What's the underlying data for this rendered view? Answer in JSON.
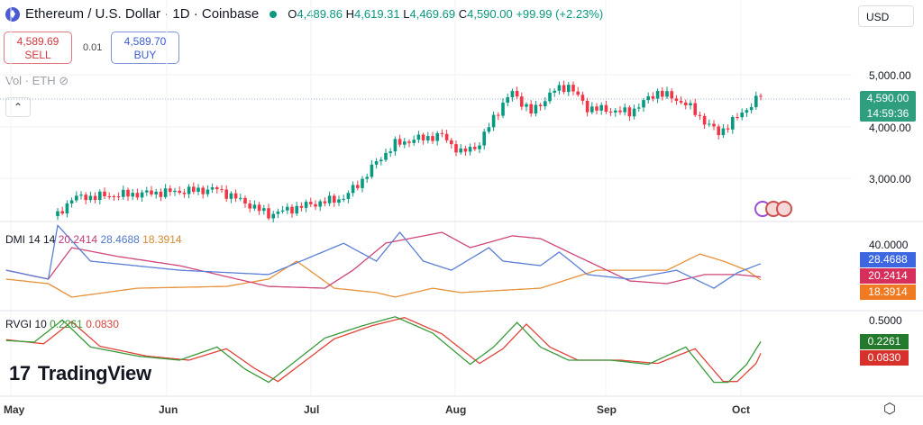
{
  "header": {
    "title": "Ethereum / U.S. Dollar · 1D · Coinbase",
    "o_label": "O",
    "open": "4,489.86",
    "h_label": "H",
    "high": "4,619.31",
    "l_label": "L",
    "low": "4,469.69",
    "c_label": "C",
    "close": "4,590.00",
    "change": "+99.99 (+2.23%)"
  },
  "trade": {
    "sell_price": "4,589.69",
    "sell_label": "SELL",
    "spread": "0.01",
    "buy_price": "4,589.70",
    "buy_label": "BUY"
  },
  "volume_label": "Vol · ETH",
  "currency": "USD",
  "price_axis": [
    "5,000.00",
    "4,000.00",
    "3,000.00"
  ],
  "last_price": {
    "price": "4,590.00",
    "countdown": "14:59:36"
  },
  "dmi": {
    "name": "DMI 14 14",
    "adx": "20.2414",
    "plus_di": "28.4688",
    "minus_di": "18.3914",
    "axis": "40.0000"
  },
  "rvgi": {
    "name": "RVGI 10",
    "rvgi": "0.2261",
    "signal": "0.0830",
    "axis": "0.5000"
  },
  "time_axis": [
    "May",
    "Jun",
    "Jul",
    "Aug",
    "Sep",
    "Oct"
  ],
  "logo": "TradingView",
  "colors": {
    "up": "#089981",
    "down": "#f23645",
    "adx": "#d0457a",
    "plus_di": "#5b7fd6",
    "minus_di": "#e8913a",
    "rvgi": "#3a9a3a",
    "signal": "#e0453a"
  },
  "chart_data": {
    "type": "candlestick",
    "x_unit": "days since May 1",
    "price_keypoints": [
      [
        10,
        2270
      ],
      [
        13,
        2620
      ],
      [
        27,
        2700
      ],
      [
        44,
        2790
      ],
      [
        50,
        2530
      ],
      [
        55,
        2300
      ],
      [
        63,
        2480
      ],
      [
        71,
        2620
      ],
      [
        75,
        2970
      ],
      [
        78,
        3310
      ],
      [
        82,
        3660
      ],
      [
        86,
        3750
      ],
      [
        92,
        3830
      ],
      [
        96,
        3490
      ],
      [
        100,
        3660
      ],
      [
        103,
        4180
      ],
      [
        107,
        4670
      ],
      [
        111,
        4270
      ],
      [
        116,
        4700
      ],
      [
        119,
        4790
      ],
      [
        123,
        4360
      ],
      [
        132,
        4270
      ],
      [
        138,
        4670
      ],
      [
        144,
        4440
      ],
      [
        148,
        4100
      ],
      [
        151,
        3870
      ],
      [
        155,
        4180
      ],
      [
        160,
        4590
      ]
    ],
    "price_range": [
      2300,
      5000
    ],
    "dmi": {
      "range": [
        0,
        40
      ],
      "plus_di": [
        [
          -1,
          24.4
        ],
        [
          8,
          18.9
        ],
        [
          10,
          52
        ],
        [
          17,
          30
        ],
        [
          36,
          24.4
        ],
        [
          55,
          21.7
        ],
        [
          71,
          41
        ],
        [
          78,
          30
        ],
        [
          83,
          47.8
        ],
        [
          88,
          30
        ],
        [
          94,
          24.4
        ],
        [
          102,
          38.3
        ],
        [
          105,
          30
        ],
        [
          113,
          27.2
        ],
        [
          117,
          35.6
        ],
        [
          123,
          21.7
        ],
        [
          132,
          18.9
        ],
        [
          142,
          24.4
        ],
        [
          150,
          13.3
        ],
        [
          155,
          22.8
        ],
        [
          160,
          28.47
        ]
      ],
      "adx": [
        [
          -1,
          24.4
        ],
        [
          8,
          18.9
        ],
        [
          13,
          38.3
        ],
        [
          23,
          32.8
        ],
        [
          36,
          27.2
        ],
        [
          55,
          14.4
        ],
        [
          67,
          13.3
        ],
        [
          73,
          24.4
        ],
        [
          80,
          41.1
        ],
        [
          92,
          47.8
        ],
        [
          98,
          38.3
        ],
        [
          107,
          45.6
        ],
        [
          113,
          43.9
        ],
        [
          121,
          32.8
        ],
        [
          132,
          17.8
        ],
        [
          140,
          16.1
        ],
        [
          148,
          21.7
        ],
        [
          155,
          21.7
        ],
        [
          160,
          20.24
        ]
      ],
      "minus_di": [
        [
          -1,
          18.9
        ],
        [
          8,
          16.1
        ],
        [
          13,
          7.8
        ],
        [
          27,
          13.3
        ],
        [
          46,
          14.4
        ],
        [
          55,
          18.9
        ],
        [
          61,
          30
        ],
        [
          69,
          13.3
        ],
        [
          78,
          10.6
        ],
        [
          82,
          7.8
        ],
        [
          90,
          13.3
        ],
        [
          96,
          10.6
        ],
        [
          113,
          13.3
        ],
        [
          125,
          24.4
        ],
        [
          140,
          24.4
        ],
        [
          147,
          34.4
        ],
        [
          152,
          30
        ],
        [
          157,
          24.4
        ],
        [
          160,
          18.39
        ]
      ]
    },
    "rvgi": {
      "range": [
        -0.35,
        0.55
      ],
      "rvgi": [
        [
          -1,
          0.24
        ],
        [
          5,
          0.22
        ],
        [
          11,
          0.49
        ],
        [
          17,
          0.16
        ],
        [
          27,
          0.05
        ],
        [
          36,
          0
        ],
        [
          44,
          0.16
        ],
        [
          50,
          -0.11
        ],
        [
          55,
          -0.27
        ],
        [
          61,
          0
        ],
        [
          67,
          0.27
        ],
        [
          75,
          0.42
        ],
        [
          82,
          0.53
        ],
        [
          90,
          0.33
        ],
        [
          98,
          -0.05
        ],
        [
          103,
          0.16
        ],
        [
          108,
          0.46
        ],
        [
          113,
          0.16
        ],
        [
          119,
          0
        ],
        [
          128,
          0
        ],
        [
          136,
          -0.05
        ],
        [
          144,
          0.16
        ],
        [
          150,
          -0.27
        ],
        [
          153,
          -0.27
        ],
        [
          157,
          -0.05
        ],
        [
          160,
          0.2261
        ]
      ],
      "signal": [
        [
          -1,
          0.25
        ],
        [
          7,
          0.2
        ],
        [
          13,
          0.47
        ],
        [
          19,
          0.17
        ],
        [
          29,
          0.05
        ],
        [
          38,
          0
        ],
        [
          46,
          0.14
        ],
        [
          52,
          -0.1
        ],
        [
          57,
          -0.26
        ],
        [
          63,
          0
        ],
        [
          69,
          0.26
        ],
        [
          77,
          0.42
        ],
        [
          84,
          0.52
        ],
        [
          92,
          0.32
        ],
        [
          100,
          -0.04
        ],
        [
          105,
          0.14
        ],
        [
          110,
          0.44
        ],
        [
          115,
          0.16
        ],
        [
          121,
          0
        ],
        [
          130,
          0
        ],
        [
          138,
          -0.04
        ],
        [
          146,
          0.14
        ],
        [
          152,
          -0.26
        ],
        [
          155,
          -0.26
        ],
        [
          159,
          -0.04
        ],
        [
          160,
          0.083
        ]
      ]
    }
  }
}
